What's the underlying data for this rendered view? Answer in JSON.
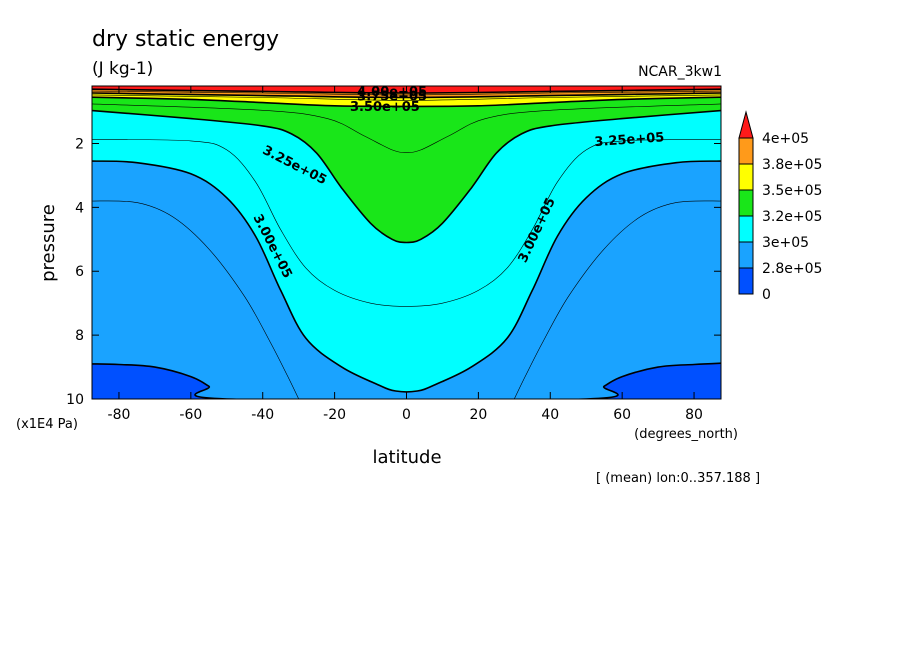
{
  "chart_data": {
    "type": "contour",
    "title": "dry static energy",
    "units": "(J kg-1)",
    "experiment": "NCAR_3kw1",
    "xlabel": "latitude",
    "xunits": "(degrees_north)",
    "ylabel": "pressure",
    "yunits": "(x1E4 Pa)",
    "footnote": "[ (mean) lon:0..357.188 ]",
    "xlim": [
      -87.5,
      87.5
    ],
    "ylim": [
      10,
      0.2
    ],
    "x_ticks": [
      "-80",
      "-60",
      "-40",
      "-20",
      "0",
      "20",
      "40",
      "60",
      "80"
    ],
    "y_ticks": [
      "2",
      "4",
      "6",
      "8",
      "10"
    ],
    "contour_labels": [
      "4.00e+05",
      "3.75e+05",
      "3.50e+05",
      "3.25e+05",
      "3.25e+05",
      "3.00e+05",
      "3.00e+05"
    ],
    "colorbar": {
      "levels": [
        "4e+05",
        "3.8e+05",
        "3.5e+05",
        "3.2e+05",
        "3e+05",
        "2.8e+05",
        "0"
      ],
      "colors": [
        "#ff1a1a",
        "#ff9a1a",
        "#ffff00",
        "#19e619",
        "#00ffff",
        "#1aa3ff",
        "#0050ff"
      ]
    },
    "contours": [
      {
        "level": 275000,
        "fill": "#0050ff",
        "points": [
          [
            -87.5,
            8.9
          ],
          [
            -80,
            8.92
          ],
          [
            -70,
            9.0
          ],
          [
            -60,
            9.3
          ],
          [
            -55,
            9.6
          ],
          [
            -50,
            10
          ],
          [
            50,
            10
          ],
          [
            55,
            9.6
          ],
          [
            60,
            9.3
          ],
          [
            70,
            9.0
          ],
          [
            80,
            8.92
          ],
          [
            87.5,
            8.88
          ]
        ]
      },
      {
        "level": 300000,
        "fill": "#00ffff",
        "points": [
          [
            -87.5,
            2.55
          ],
          [
            -75,
            2.6
          ],
          [
            -60,
            2.95
          ],
          [
            -50,
            3.7
          ],
          [
            -42,
            4.9
          ],
          [
            -35,
            6.6
          ],
          [
            -28,
            8.1
          ],
          [
            -18,
            9.0
          ],
          [
            -8,
            9.55
          ],
          [
            -3,
            9.75
          ],
          [
            3,
            9.75
          ],
          [
            8,
            9.55
          ],
          [
            18,
            9.0
          ],
          [
            28,
            8.1
          ],
          [
            35,
            6.6
          ],
          [
            42,
            4.9
          ],
          [
            50,
            3.7
          ],
          [
            60,
            2.95
          ],
          [
            75,
            2.6
          ],
          [
            87.5,
            2.55
          ]
        ]
      },
      {
        "level": 325000,
        "fill": "#19e619",
        "points": [
          [
            -87.5,
            0.97
          ],
          [
            -60,
            1.22
          ],
          [
            -40,
            1.45
          ],
          [
            -32,
            1.7
          ],
          [
            -25,
            2.3
          ],
          [
            -18,
            3.4
          ],
          [
            -10,
            4.5
          ],
          [
            -4,
            5.0
          ],
          [
            0,
            5.1
          ],
          [
            4,
            5.0
          ],
          [
            10,
            4.5
          ],
          [
            18,
            3.4
          ],
          [
            25,
            2.3
          ],
          [
            32,
            1.7
          ],
          [
            40,
            1.45
          ],
          [
            60,
            1.22
          ],
          [
            87.5,
            0.97
          ]
        ]
      },
      {
        "level": 350000,
        "fill": "#ffff00",
        "points": [
          [
            -87.5,
            0.55
          ],
          [
            -60,
            0.62
          ],
          [
            -40,
            0.72
          ],
          [
            -20,
            0.82
          ],
          [
            0,
            0.84
          ],
          [
            20,
            0.82
          ],
          [
            40,
            0.72
          ],
          [
            60,
            0.62
          ],
          [
            87.5,
            0.55
          ]
        ]
      },
      {
        "level": 375000,
        "fill": "#ff9a1a",
        "points": [
          [
            -87.5,
            0.42
          ],
          [
            -40,
            0.5
          ],
          [
            0,
            0.56
          ],
          [
            40,
            0.5
          ],
          [
            87.5,
            0.42
          ]
        ]
      },
      {
        "level": 400000,
        "fill": "#ff1a1a",
        "points": [
          [
            -87.5,
            0.3
          ],
          [
            -40,
            0.37
          ],
          [
            0,
            0.42
          ],
          [
            40,
            0.37
          ],
          [
            87.5,
            0.3
          ]
        ]
      }
    ],
    "thin_lines": [
      {
        "level": 287500,
        "points": [
          [
            -87.5,
            3.8
          ],
          [
            -75,
            3.85
          ],
          [
            -65,
            4.3
          ],
          [
            -55,
            5.3
          ],
          [
            -45,
            6.8
          ],
          [
            -38,
            8.2
          ],
          [
            -33,
            9.3
          ],
          [
            -30,
            10
          ]
        ]
      },
      {
        "level": 287500,
        "points": [
          [
            30,
            10
          ],
          [
            33,
            9.3
          ],
          [
            38,
            8.2
          ],
          [
            45,
            6.8
          ],
          [
            55,
            5.3
          ],
          [
            65,
            4.3
          ],
          [
            75,
            3.85
          ],
          [
            87.5,
            3.8
          ]
        ]
      },
      {
        "level": 312500,
        "points": [
          [
            -87.5,
            1.87
          ],
          [
            -60,
            1.92
          ],
          [
            -50,
            2.2
          ],
          [
            -42,
            3.2
          ],
          [
            -35,
            4.7
          ],
          [
            -28,
            5.9
          ],
          [
            -20,
            6.6
          ],
          [
            -10,
            7.0
          ],
          [
            0,
            7.1
          ],
          [
            10,
            7.0
          ],
          [
            20,
            6.6
          ],
          [
            28,
            5.9
          ],
          [
            35,
            4.7
          ],
          [
            42,
            3.2
          ],
          [
            50,
            2.2
          ],
          [
            60,
            1.92
          ],
          [
            87.5,
            1.87
          ]
        ]
      },
      {
        "level": 337500,
        "points": [
          [
            -87.5,
            0.76
          ],
          [
            -40,
            0.96
          ],
          [
            -22,
            1.22
          ],
          [
            -12,
            1.75
          ],
          [
            -4,
            2.2
          ],
          [
            0,
            2.28
          ],
          [
            4,
            2.2
          ],
          [
            12,
            1.75
          ],
          [
            22,
            1.22
          ],
          [
            40,
            0.96
          ],
          [
            87.5,
            0.76
          ]
        ]
      },
      {
        "level": 362500,
        "points": [
          [
            -87.5,
            0.48
          ],
          [
            -40,
            0.56
          ],
          [
            0,
            0.65
          ],
          [
            40,
            0.56
          ],
          [
            87.5,
            0.48
          ]
        ]
      },
      {
        "level": 387500,
        "points": [
          [
            -87.5,
            0.36
          ],
          [
            -40,
            0.42
          ],
          [
            0,
            0.48
          ],
          [
            40,
            0.42
          ],
          [
            87.5,
            0.36
          ]
        ]
      }
    ]
  }
}
